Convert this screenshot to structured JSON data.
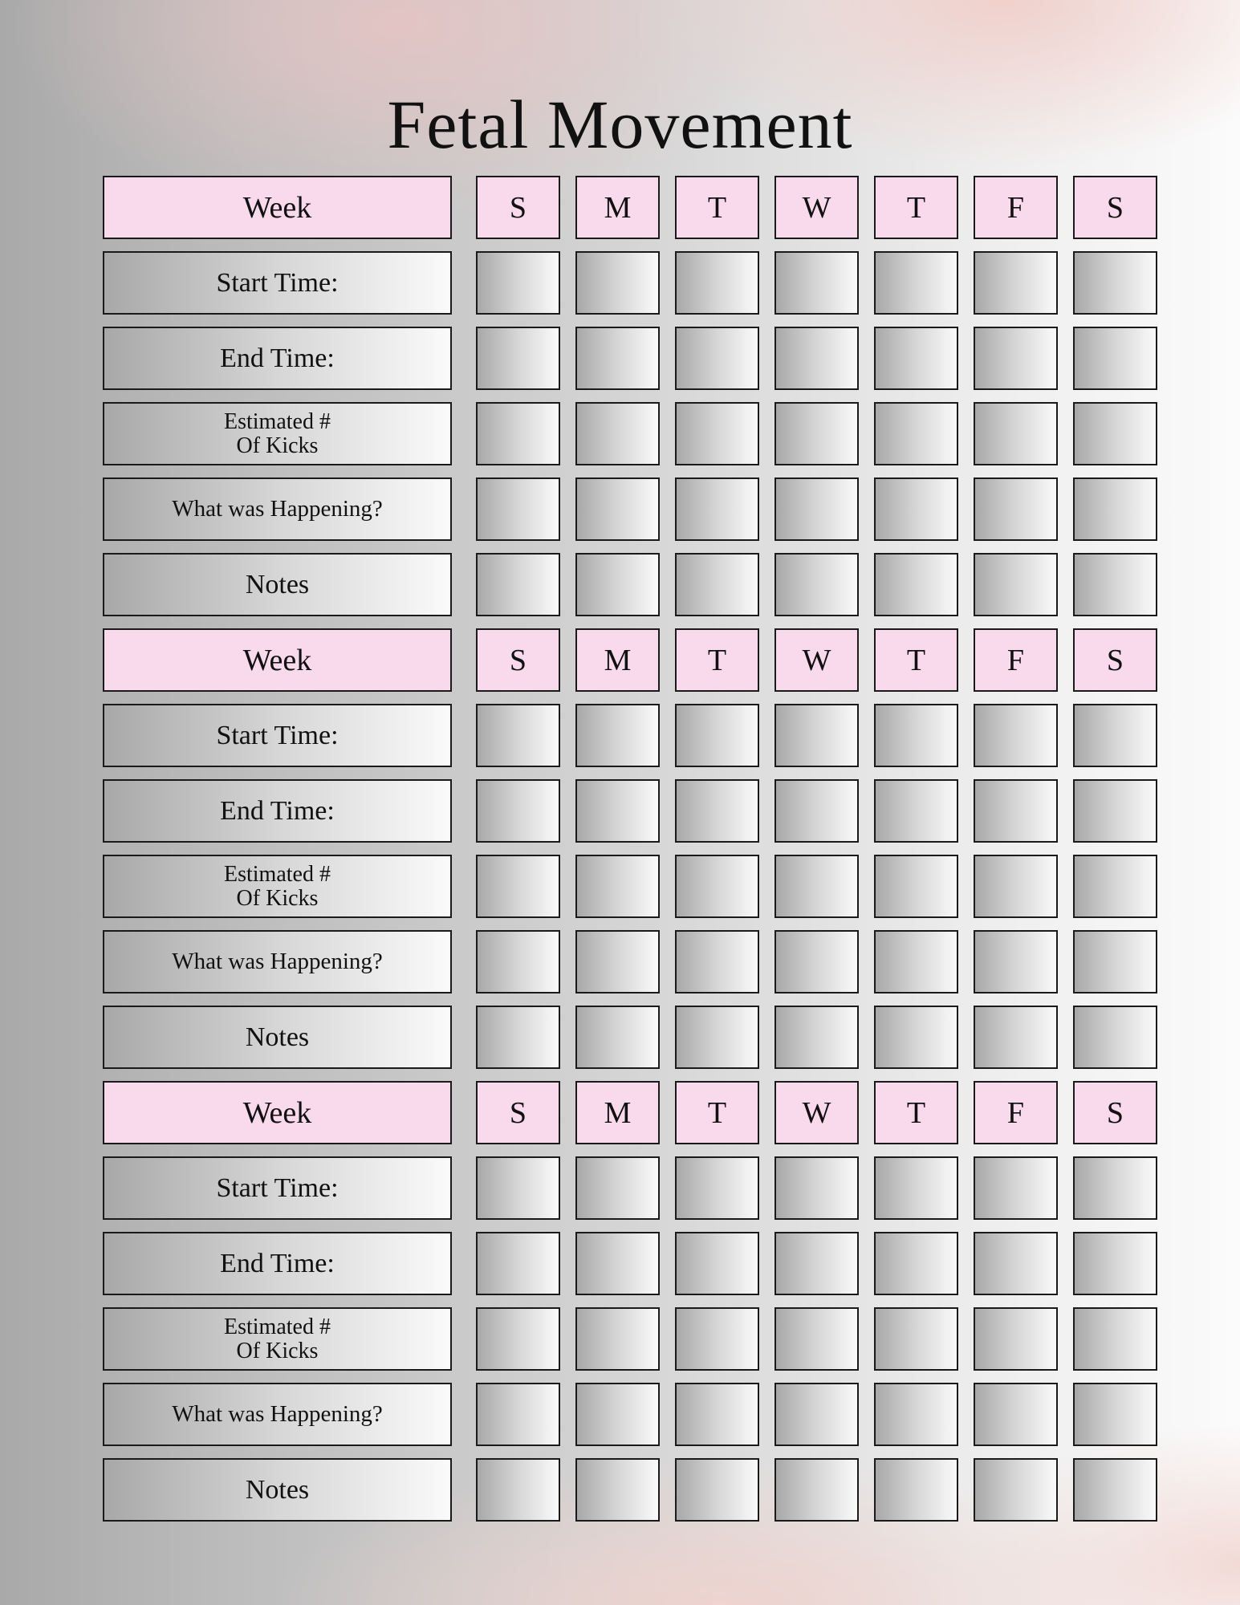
{
  "title": "Fetal Movement",
  "colors": {
    "header_pink": "#f9d9ec",
    "border": "#1a1a1a"
  },
  "blocks": [
    {
      "header": "Week",
      "days": [
        "S",
        "M",
        "T",
        "W",
        "T",
        "F",
        "S"
      ],
      "rows": [
        "Start Time:",
        "End Time:",
        "Estimated #\nOf Kicks",
        "What was Happening?",
        "Notes"
      ]
    },
    {
      "header": "Week",
      "days": [
        "S",
        "M",
        "T",
        "W",
        "T",
        "F",
        "S"
      ],
      "rows": [
        "Start Time:",
        "End Time:",
        "Estimated #\nOf Kicks",
        "What was Happening?",
        "Notes"
      ]
    },
    {
      "header": "Week",
      "days": [
        "S",
        "M",
        "T",
        "W",
        "T",
        "F",
        "S"
      ],
      "rows": [
        "Start Time:",
        "End Time:",
        "Estimated #\nOf Kicks",
        "What was Happening?",
        "Notes"
      ]
    }
  ]
}
